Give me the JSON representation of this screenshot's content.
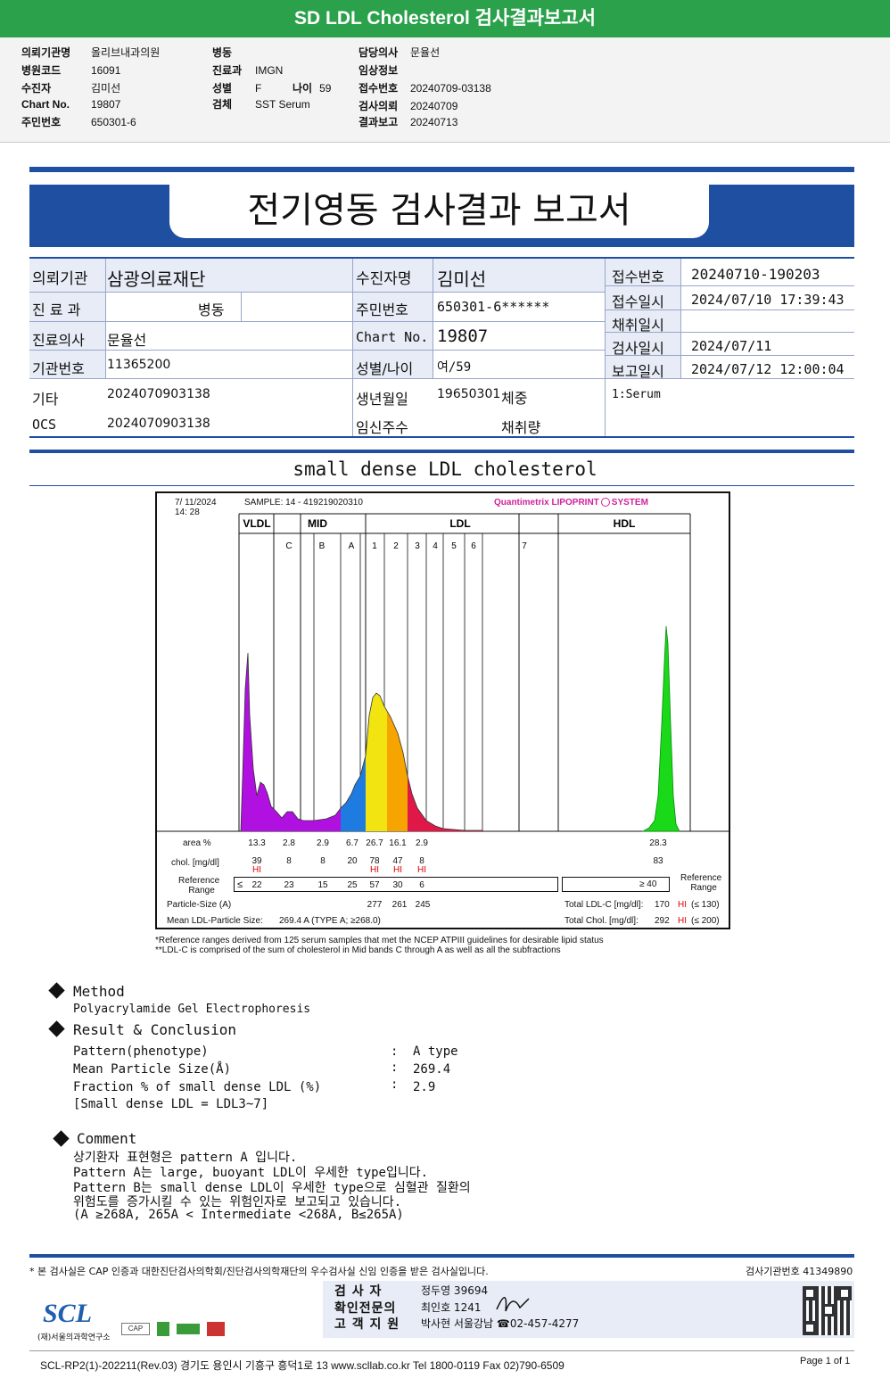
{
  "top": {
    "title": "SD LDL Cholesterol 검사결과보고서",
    "left": [
      {
        "label": "의뢰기관명",
        "value": "올리브내과의원"
      },
      {
        "label": "병원코드",
        "value": "16091"
      },
      {
        "label": "수진자",
        "value": "김미선"
      },
      {
        "label": "Chart No.",
        "value": "19807"
      },
      {
        "label": "주민번호",
        "value": "650301-6"
      }
    ],
    "mid": [
      {
        "label": "병동",
        "value": ""
      },
      {
        "label": "진료과",
        "value": "IMGN"
      },
      {
        "label": "성별",
        "value": "F"
      },
      {
        "label": "검체",
        "value": "SST Serum"
      }
    ],
    "age_label": "나이",
    "age_value": "59",
    "right": [
      {
        "label": "담당의사",
        "value": "문율선"
      },
      {
        "label": "임상정보",
        "value": ""
      },
      {
        "label": "접수번호",
        "value": "20240709-03138"
      },
      {
        "label": "검사의뢰",
        "value": "20240709"
      },
      {
        "label": "결과보고",
        "value": "20240713"
      }
    ]
  },
  "report": {
    "title": "전기영동 검사결과 보고서",
    "col1": [
      {
        "label": "의뢰기관",
        "value": "삼광의료재단"
      },
      {
        "label": "진 료 과",
        "value": "병동"
      },
      {
        "label": "진료의사",
        "value": "문율선"
      },
      {
        "label": "기관번호",
        "value": "11365200"
      },
      {
        "label": "기타",
        "value": "2024070903138"
      },
      {
        "label": "OCS",
        "value": "2024070903138"
      }
    ],
    "col2": [
      {
        "label": "수진자명",
        "value": "김미선"
      },
      {
        "label": "주민번호",
        "value": "650301-6******"
      },
      {
        "label": "Chart No.",
        "value": "19807"
      },
      {
        "label": "성별/나이",
        "value": "여/59"
      },
      {
        "label": "생년월일",
        "value": "19650301"
      },
      {
        "label": "임신주수",
        "value": ""
      }
    ],
    "weight_label": "체중",
    "collect_amt_label": "채취량",
    "col3": [
      {
        "label": "접수번호",
        "value": "20240710-190203"
      },
      {
        "label": "접수일시",
        "value": "2024/07/10 17:39:43"
      },
      {
        "label": "채취일시",
        "value": ""
      },
      {
        "label": "검사일시",
        "value": "2024/07/11"
      },
      {
        "label": "보고일시",
        "value": "2024/07/12 12:00:04"
      }
    ],
    "specimen": "1:Serum"
  },
  "section_title": "small dense LDL cholesterol",
  "chart_header": {
    "date": "7/ 11/2024",
    "time": "14: 28",
    "sample": "SAMPLE:   14 - 419219020310",
    "brand": "Quantimetrix LIPOPRINT",
    "brand_tail": "SYSTEM",
    "brand_color": "#d0219a"
  },
  "chart_data": {
    "type": "area",
    "title": "",
    "group_labels": [
      "VLDL",
      "MID",
      "LDL",
      "HDL"
    ],
    "band_labels": [
      "C",
      "B",
      "A",
      "1",
      "2",
      "3",
      "4",
      "5",
      "6",
      "7"
    ],
    "rows": {
      "area_label": "area %",
      "area": [
        "13.3",
        "2.8",
        "2.9",
        "6.7",
        "26.7",
        "16.1",
        "2.9"
      ],
      "area_hdl": "28.3",
      "chol_label": "chol. [mg/dl]",
      "chol": [
        "39",
        "8",
        "8",
        "20",
        "78",
        "47",
        "8"
      ],
      "chol_hdl": "83",
      "hi_flags": [
        "HI",
        "",
        "",
        "",
        "HI",
        "HI",
        "HI"
      ],
      "ref_label_1": "Reference",
      "ref_label_2": "Range",
      "ref_prefix": "≤",
      "ref": [
        "22",
        "23",
        "15",
        "25",
        "57",
        "30",
        "6"
      ],
      "ref_hdl": "≥  40",
      "particle_label": "Particle-Size (A)",
      "particle": [
        "277",
        "261",
        "245"
      ],
      "mean_label": "Mean LDL-Particle Size:",
      "mean_value": "269.4  A   (TYPE A; ≥268.0)",
      "total_ldl_label": "Total LDL-C  [mg/dl]:",
      "total_ldl_value": "170",
      "total_ldl_flag": "HI",
      "total_ldl_ref": "(≤ 130)",
      "total_chol_label": "Total Chol.  [mg/dl]:",
      "total_chol_value": "292",
      "total_chol_flag": "HI",
      "total_chol_ref": "(≤ 200)"
    },
    "colors": {
      "vldl": "#b010e0",
      "mid": "#b010e0",
      "a_band": "#1e7be0",
      "ldl1": "#f2e410",
      "ldl2": "#f5a400",
      "ldl3": "#e01848",
      "hdl": "#19d919"
    }
  },
  "notes": [
    "*Reference ranges derived from 125 serum samples that met the NCEP ATPIII guidelines for desirable lipid status",
    "**LDL-C is comprised of the sum of cholesterol in Mid bands C through A as well as all the subfractions"
  ],
  "method": {
    "title": "Method",
    "text": "Polyacrylamide Gel Electrophoresis"
  },
  "result": {
    "title": "Result & Conclusion",
    "rows": [
      {
        "label": "Pattern(phenotype)",
        "value": "A type"
      },
      {
        "label": "Mean Particle Size(Å)",
        "value": "269.4"
      },
      {
        "label": "Fraction % of small dense LDL (%)",
        "value": "2.9"
      }
    ],
    "note": "[Small dense LDL = LDL3~7]"
  },
  "comment": {
    "title": "Comment",
    "lines": [
      "상기환자 표현형은 pattern A 입니다.",
      "Pattern A는 large, buoyant LDL이 우세한 type입니다.",
      "Pattern B는 small dense LDL이 우세한 type으로 심혈관 질환의",
      "위험도를 증가시킬 수 있는 위험인자로 보고되고 있습니다.",
      "(A ≥268A, 265A < Intermediate <268A, B≤265A)"
    ]
  },
  "footer": {
    "cert": "* 본 검사실은 CAP 인증과 대한진단검사의학회/진단검사의학재단의 우수검사실 신임 인증을 받은 검사실입니다.",
    "org_no": "검사기관번호 41349890",
    "rows": [
      {
        "label": "검 사 자",
        "value": "정두영 39694"
      },
      {
        "label": "확인전문의",
        "value": "최인호 1241"
      },
      {
        "label": "고 객 지 원",
        "value": "박사현 서울강남 ☎02-457-4277"
      }
    ],
    "logo_text": "SCL",
    "logo_sub": "(재)서울의과학연구소",
    "bottom": "SCL-RP2(1)-202211(Rev.03)  경기도 용인시 기흥구 흥덕1로 13  www.scllab.co.kr  Tel 1800-0119  Fax 02)790-6509",
    "page": "Page 1 of 1"
  }
}
